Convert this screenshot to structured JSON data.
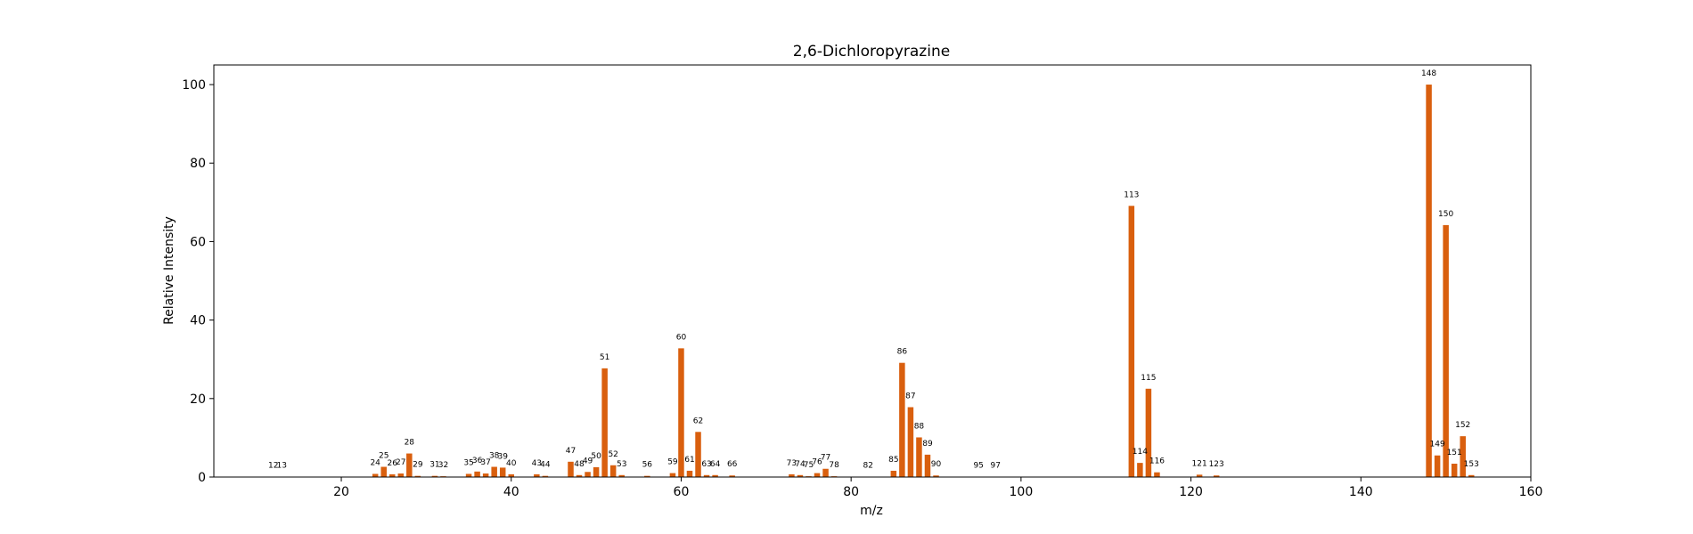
{
  "chart_data": {
    "type": "bar",
    "title": "2,6-Dichloropyrazine",
    "xlabel": "m/z",
    "ylabel": "Relative Intensity",
    "xlim": [
      5,
      160
    ],
    "ylim": [
      0,
      105
    ],
    "xticks": [
      20,
      40,
      60,
      80,
      100,
      120,
      140,
      160
    ],
    "yticks": [
      0,
      20,
      40,
      60,
      80,
      100
    ],
    "grid": false,
    "bar_color": "#d95f0e",
    "peaks": [
      {
        "x": 12,
        "y": 0.1
      },
      {
        "x": 13,
        "y": 0.1
      },
      {
        "x": 24,
        "y": 0.8
      },
      {
        "x": 25,
        "y": 2.6
      },
      {
        "x": 26,
        "y": 0.7
      },
      {
        "x": 27,
        "y": 0.9
      },
      {
        "x": 28,
        "y": 6.0
      },
      {
        "x": 29,
        "y": 0.3
      },
      {
        "x": 31,
        "y": 0.3
      },
      {
        "x": 32,
        "y": 0.2
      },
      {
        "x": 35,
        "y": 0.8
      },
      {
        "x": 36,
        "y": 1.4
      },
      {
        "x": 37,
        "y": 0.9
      },
      {
        "x": 38,
        "y": 2.6
      },
      {
        "x": 39,
        "y": 2.4
      },
      {
        "x": 40,
        "y": 0.7
      },
      {
        "x": 43,
        "y": 0.7
      },
      {
        "x": 44,
        "y": 0.3
      },
      {
        "x": 47,
        "y": 3.9
      },
      {
        "x": 48,
        "y": 0.5
      },
      {
        "x": 49,
        "y": 1.3
      },
      {
        "x": 50,
        "y": 2.5
      },
      {
        "x": 51,
        "y": 27.7
      },
      {
        "x": 52,
        "y": 3.0
      },
      {
        "x": 53,
        "y": 0.5
      },
      {
        "x": 56,
        "y": 0.3
      },
      {
        "x": 59,
        "y": 1.0
      },
      {
        "x": 60,
        "y": 32.8
      },
      {
        "x": 61,
        "y": 1.6
      },
      {
        "x": 62,
        "y": 11.5
      },
      {
        "x": 63,
        "y": 0.5
      },
      {
        "x": 64,
        "y": 0.5
      },
      {
        "x": 66,
        "y": 0.4
      },
      {
        "x": 73,
        "y": 0.7
      },
      {
        "x": 74,
        "y": 0.5
      },
      {
        "x": 75,
        "y": 0.2
      },
      {
        "x": 76,
        "y": 1.0
      },
      {
        "x": 77,
        "y": 2.1
      },
      {
        "x": 78,
        "y": 0.2
      },
      {
        "x": 82,
        "y": 0.1
      },
      {
        "x": 85,
        "y": 1.6
      },
      {
        "x": 86,
        "y": 29.1
      },
      {
        "x": 87,
        "y": 17.8
      },
      {
        "x": 88,
        "y": 10.1
      },
      {
        "x": 89,
        "y": 5.7
      },
      {
        "x": 90,
        "y": 0.4
      },
      {
        "x": 95,
        "y": 0.1
      },
      {
        "x": 97,
        "y": 0.1
      },
      {
        "x": 113,
        "y": 69.1
      },
      {
        "x": 114,
        "y": 3.6
      },
      {
        "x": 115,
        "y": 22.5
      },
      {
        "x": 116,
        "y": 1.2
      },
      {
        "x": 121,
        "y": 0.6
      },
      {
        "x": 123,
        "y": 0.4
      },
      {
        "x": 148,
        "y": 100.0
      },
      {
        "x": 149,
        "y": 5.5
      },
      {
        "x": 150,
        "y": 64.2
      },
      {
        "x": 151,
        "y": 3.4
      },
      {
        "x": 152,
        "y": 10.4
      },
      {
        "x": 153,
        "y": 0.5
      }
    ]
  }
}
